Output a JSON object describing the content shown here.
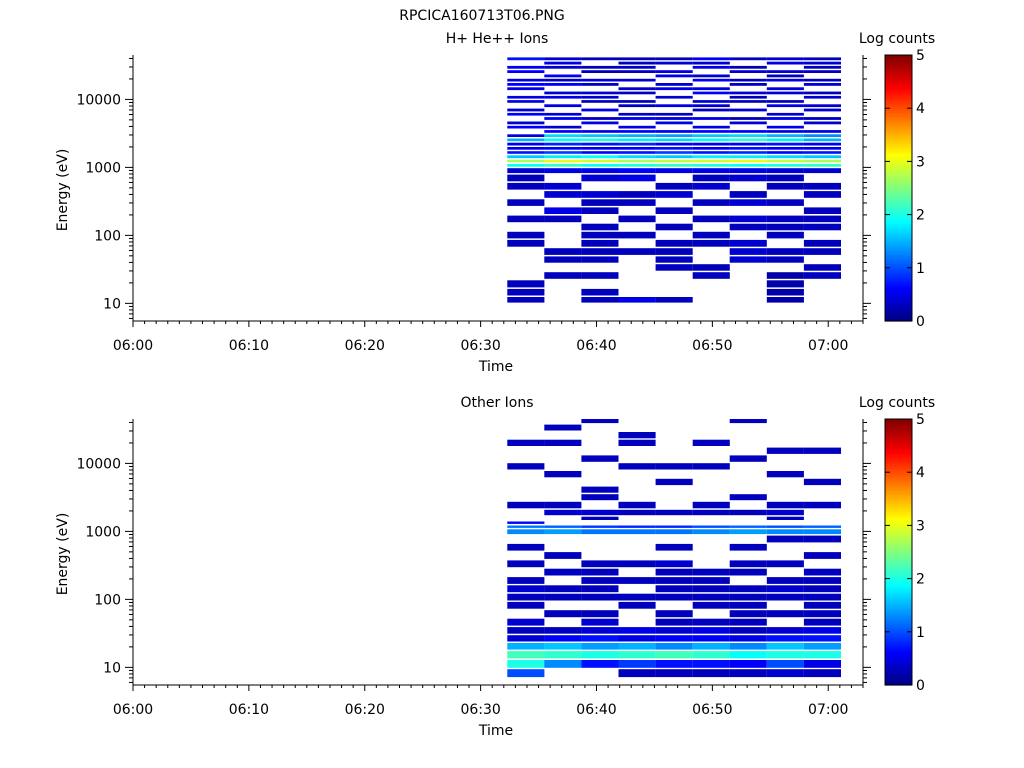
{
  "title": "RPCICA160713T06.PNG",
  "chart_data": [
    {
      "type": "heatmap",
      "title": "H+ He++ Ions",
      "xlabel": "Time",
      "ylabel": "Energy (eV)",
      "x_ticks": [
        "06:00",
        "06:10",
        "06:20",
        "06:30",
        "06:40",
        "06:50",
        "07:00"
      ],
      "x_range_minutes": [
        0,
        63
      ],
      "y_scale": "log",
      "y_range": [
        5.5,
        45000
      ],
      "y_ticks": [
        "10",
        "100",
        "1000",
        "10000"
      ],
      "colorbar": {
        "label": "Log counts",
        "range": [
          0,
          5
        ],
        "ticks": [
          "0",
          "1",
          "2",
          "3",
          "4",
          "5"
        ]
      },
      "column_starts_minutes": [
        32.3,
        35.5,
        38.7,
        41.9,
        45.1,
        48.3,
        51.5,
        54.7,
        57.9,
        61.1
      ],
      "levels_eV": [
        11,
        14,
        19,
        25,
        33,
        43,
        56,
        75,
        98,
        130,
        170,
        225,
        295,
        390,
        515,
        680,
        900,
        1050,
        1200,
        1400,
        1620,
        1850,
        2150,
        2480,
        2850,
        3300,
        3800,
        4400,
        5100,
        5900,
        6800,
        7900,
        9100,
        10500,
        12100,
        14000,
        16200,
        18700,
        21600,
        25000,
        28900,
        33400,
        38600
      ],
      "values": [
        [
          0.3,
          0.3,
          0.3,
          null,
          null,
          null,
          null,
          0.3,
          0.3,
          null,
          0.3,
          null,
          0.3,
          null,
          0.3,
          0.3,
          0.4,
          1.9,
          2.7,
          1.6,
          0.7,
          0.5,
          0.6,
          1.5,
          0.5,
          null,
          0.6,
          0.4,
          null,
          0.6,
          0.4,
          null,
          0.5,
          0.5,
          null,
          0.5,
          0.6,
          0.5,
          null,
          0.6,
          0.6,
          null,
          0.7
        ],
        [
          null,
          null,
          null,
          0.3,
          null,
          0.3,
          0.3,
          null,
          null,
          null,
          0.3,
          0.5,
          null,
          0.4,
          0.4,
          null,
          0.5,
          2.1,
          3.0,
          1.8,
          0.9,
          0.6,
          0.8,
          1.9,
          1.7,
          0.6,
          0.4,
          null,
          0.6,
          0.4,
          null,
          0.5,
          null,
          0.5,
          0.4,
          null,
          0.6,
          0.3,
          0.6,
          null,
          0.4,
          0.5,
          0.4
        ],
        [
          0.3,
          0.3,
          null,
          0.3,
          null,
          0.3,
          0.3,
          0.3,
          0.3,
          0.3,
          null,
          0.3,
          0.3,
          0.4,
          null,
          0.4,
          0.5,
          1.9,
          2.9,
          1.9,
          0.6,
          0.5,
          0.7,
          2.0,
          1.6,
          0.5,
          null,
          0.5,
          0.3,
          null,
          0.5,
          null,
          0.3,
          0.4,
          0.4,
          null,
          0.3,
          0.5,
          null,
          0.3,
          0.3,
          null,
          0.3
        ],
        [
          0.5,
          null,
          null,
          null,
          null,
          null,
          0.3,
          null,
          0.3,
          null,
          0.3,
          null,
          0.3,
          0.3,
          null,
          0.5,
          0.6,
          2.0,
          2.7,
          1.7,
          0.7,
          0.6,
          0.8,
          1.8,
          1.5,
          0.6,
          0.5,
          null,
          0.5,
          0.3,
          null,
          0.3,
          0.3,
          null,
          0.3,
          0.4,
          null,
          0.4,
          null,
          0.3,
          0.4,
          0.3,
          0.3
        ],
        [
          0.3,
          null,
          null,
          null,
          0.3,
          0.3,
          0.3,
          0.3,
          null,
          0.3,
          null,
          0.3,
          null,
          0.4,
          0.3,
          null,
          0.5,
          2.1,
          2.8,
          1.6,
          0.9,
          0.7,
          0.6,
          1.7,
          1.4,
          0.5,
          null,
          0.5,
          0.4,
          0.3,
          null,
          0.5,
          null,
          0.4,
          null,
          0.5,
          0.4,
          null,
          0.5,
          0.5,
          null,
          0.4,
          0.3
        ],
        [
          null,
          null,
          null,
          0.3,
          0.3,
          null,
          null,
          0.3,
          0.3,
          null,
          0.3,
          null,
          0.3,
          null,
          0.4,
          0.3,
          0.5,
          2.0,
          2.9,
          1.8,
          0.7,
          0.5,
          0.6,
          1.9,
          1.6,
          0.6,
          0.5,
          null,
          0.5,
          null,
          0.3,
          0.4,
          0.4,
          null,
          0.6,
          0.5,
          null,
          0.6,
          0.4,
          null,
          0.5,
          0.4,
          0.6
        ],
        [
          null,
          null,
          null,
          null,
          null,
          0.4,
          0.4,
          0.4,
          null,
          0.3,
          0.4,
          null,
          0.4,
          0.3,
          null,
          0.4,
          0.5,
          1.9,
          3.0,
          1.8,
          0.8,
          0.7,
          0.6,
          2.1,
          1.7,
          0.6,
          null,
          0.4,
          0.3,
          null,
          0.4,
          null,
          0.3,
          0.3,
          0.4,
          null,
          0.3,
          0.3,
          null,
          0.4,
          0.3,
          null,
          0.3
        ],
        [
          0.2,
          0.2,
          0.2,
          0.2,
          null,
          0.3,
          0.3,
          null,
          0.3,
          0.3,
          0.3,
          null,
          0.3,
          null,
          0.3,
          0.3,
          0.4,
          2.0,
          2.8,
          1.7,
          0.6,
          0.6,
          0.7,
          1.8,
          1.5,
          0.5,
          0.5,
          null,
          0.5,
          0.4,
          null,
          0.5,
          0.3,
          null,
          0.4,
          0.5,
          null,
          0.5,
          0.3,
          0.4,
          null,
          0.5,
          0.4
        ],
        [
          null,
          null,
          null,
          0.3,
          0.3,
          null,
          0.3,
          0.3,
          null,
          0.3,
          0.3,
          0.3,
          null,
          0.3,
          0.3,
          null,
          0.4,
          2.1,
          2.7,
          1.6,
          0.7,
          0.5,
          0.6,
          1.5,
          1.3,
          0.5,
          null,
          0.4,
          0.3,
          null,
          0.4,
          0.4,
          null,
          0.4,
          0.3,
          null,
          0.4,
          0.3,
          null,
          0.3,
          0.3,
          0.4,
          0.3
        ],
        [
          null,
          null,
          null,
          null,
          null,
          null,
          null,
          null,
          null,
          null,
          null,
          null,
          null,
          null,
          null,
          null,
          null,
          null,
          null,
          null,
          null,
          null,
          null,
          null,
          null,
          null,
          null,
          null,
          null,
          null,
          null,
          null,
          null,
          null,
          null,
          null,
          null,
          null,
          null,
          null,
          null,
          null,
          null
        ]
      ]
    },
    {
      "type": "heatmap",
      "title": "Other Ions",
      "xlabel": "Time",
      "ylabel": "Energy (eV)",
      "x_ticks": [
        "06:00",
        "06:10",
        "06:20",
        "06:30",
        "06:40",
        "06:50",
        "07:00"
      ],
      "x_range_minutes": [
        0,
        63
      ],
      "y_scale": "log",
      "y_range": [
        5.5,
        45000
      ],
      "y_ticks": [
        "10",
        "100",
        "1000",
        "10000"
      ],
      "colorbar": {
        "label": "Log counts",
        "range": [
          0,
          5
        ],
        "ticks": [
          "0",
          "1",
          "2",
          "3",
          "4",
          "5"
        ]
      },
      "column_starts_minutes": [
        32.3,
        35.5,
        38.7,
        41.9,
        45.1,
        48.3,
        51.5,
        54.7,
        57.9,
        61.1
      ],
      "levels_eV": [
        8,
        11,
        15,
        20,
        26,
        34,
        45,
        60,
        80,
        105,
        140,
        185,
        245,
        325,
        430,
        570,
        750,
        1000,
        1150,
        1300,
        1500,
        1800,
        2400,
        3100,
        4000,
        5200,
        6800,
        8800,
        11500,
        15000,
        19500,
        25500,
        33000,
        42000
      ],
      "values": [
        [
          1.0,
          2.0,
          2.2,
          1.5,
          0.4,
          0.3,
          0.4,
          null,
          0.3,
          0.3,
          0.4,
          0.3,
          null,
          0.3,
          null,
          0.3,
          null,
          1.3,
          1.2,
          0.6,
          null,
          null,
          0.3,
          null,
          null,
          null,
          null,
          0.3,
          null,
          null,
          0.3,
          null,
          null,
          null
        ],
        [
          null,
          1.3,
          2.1,
          1.6,
          0.6,
          0.3,
          null,
          0.3,
          null,
          0.3,
          0.3,
          null,
          0.3,
          null,
          0.3,
          null,
          null,
          1.4,
          1.1,
          null,
          null,
          0.4,
          0.3,
          null,
          null,
          null,
          0.3,
          null,
          null,
          null,
          0.3,
          null,
          0.3,
          null
        ],
        [
          null,
          0.7,
          2.0,
          1.4,
          0.7,
          0.4,
          0.4,
          0.3,
          null,
          0.3,
          0.3,
          0.3,
          0.3,
          0.3,
          null,
          null,
          null,
          1.2,
          0.9,
          null,
          0.3,
          0.4,
          null,
          0.3,
          0.3,
          null,
          null,
          null,
          0.3,
          null,
          null,
          null,
          null,
          0.3
        ],
        [
          0.3,
          0.9,
          2.1,
          1.5,
          0.5,
          0.5,
          null,
          null,
          0.3,
          0.3,
          null,
          0.3,
          null,
          0.3,
          null,
          null,
          null,
          1.2,
          0.8,
          null,
          null,
          0.3,
          0.3,
          null,
          null,
          null,
          null,
          0.3,
          null,
          null,
          0.3,
          0.3,
          null,
          null
        ],
        [
          0.3,
          0.7,
          2.2,
          1.3,
          0.6,
          0.4,
          0.3,
          0.3,
          null,
          0.3,
          0.3,
          0.3,
          0.3,
          0.4,
          null,
          0.3,
          null,
          1.2,
          0.8,
          null,
          null,
          0.3,
          null,
          null,
          null,
          0.3,
          null,
          0.3,
          null,
          null,
          null,
          null,
          null,
          null
        ],
        [
          0.3,
          0.7,
          2.1,
          1.5,
          0.6,
          0.5,
          0.3,
          null,
          0.3,
          0.3,
          0.3,
          0.3,
          0.3,
          null,
          null,
          null,
          null,
          1.3,
          1.0,
          null,
          null,
          0.3,
          0.3,
          null,
          null,
          null,
          null,
          0.3,
          null,
          null,
          0.3,
          null,
          null,
          null
        ],
        [
          0.3,
          0.6,
          1.9,
          1.3,
          0.5,
          0.3,
          0.3,
          0.3,
          0.3,
          0.3,
          0.3,
          null,
          0.3,
          0.3,
          null,
          0.3,
          null,
          1.4,
          1.1,
          null,
          null,
          0.3,
          null,
          0.3,
          null,
          null,
          null,
          null,
          0.3,
          null,
          null,
          null,
          null,
          0.3
        ],
        [
          0.4,
          1.0,
          2.0,
          1.6,
          0.7,
          0.4,
          null,
          0.3,
          null,
          0.3,
          0.4,
          0.3,
          null,
          0.3,
          null,
          null,
          0.3,
          1.3,
          1.0,
          null,
          0.3,
          0.4,
          0.3,
          null,
          null,
          null,
          0.3,
          null,
          null,
          0.3,
          null,
          null,
          null,
          null
        ],
        [
          0.3,
          0.5,
          2.0,
          1.4,
          0.7,
          0.5,
          0.3,
          0.3,
          0.3,
          0.3,
          0.3,
          0.3,
          0.3,
          null,
          0.3,
          null,
          0.3,
          1.3,
          1.1,
          null,
          null,
          null,
          0.3,
          null,
          null,
          0.3,
          null,
          null,
          null,
          0.3,
          null,
          null,
          null,
          null
        ],
        [
          null,
          null,
          null,
          null,
          null,
          null,
          null,
          null,
          null,
          null,
          null,
          null,
          null,
          null,
          null,
          null,
          null,
          null,
          null,
          null,
          null,
          null,
          null,
          null,
          null,
          null,
          null,
          null,
          null,
          null,
          null,
          null,
          null,
          null
        ]
      ]
    }
  ]
}
